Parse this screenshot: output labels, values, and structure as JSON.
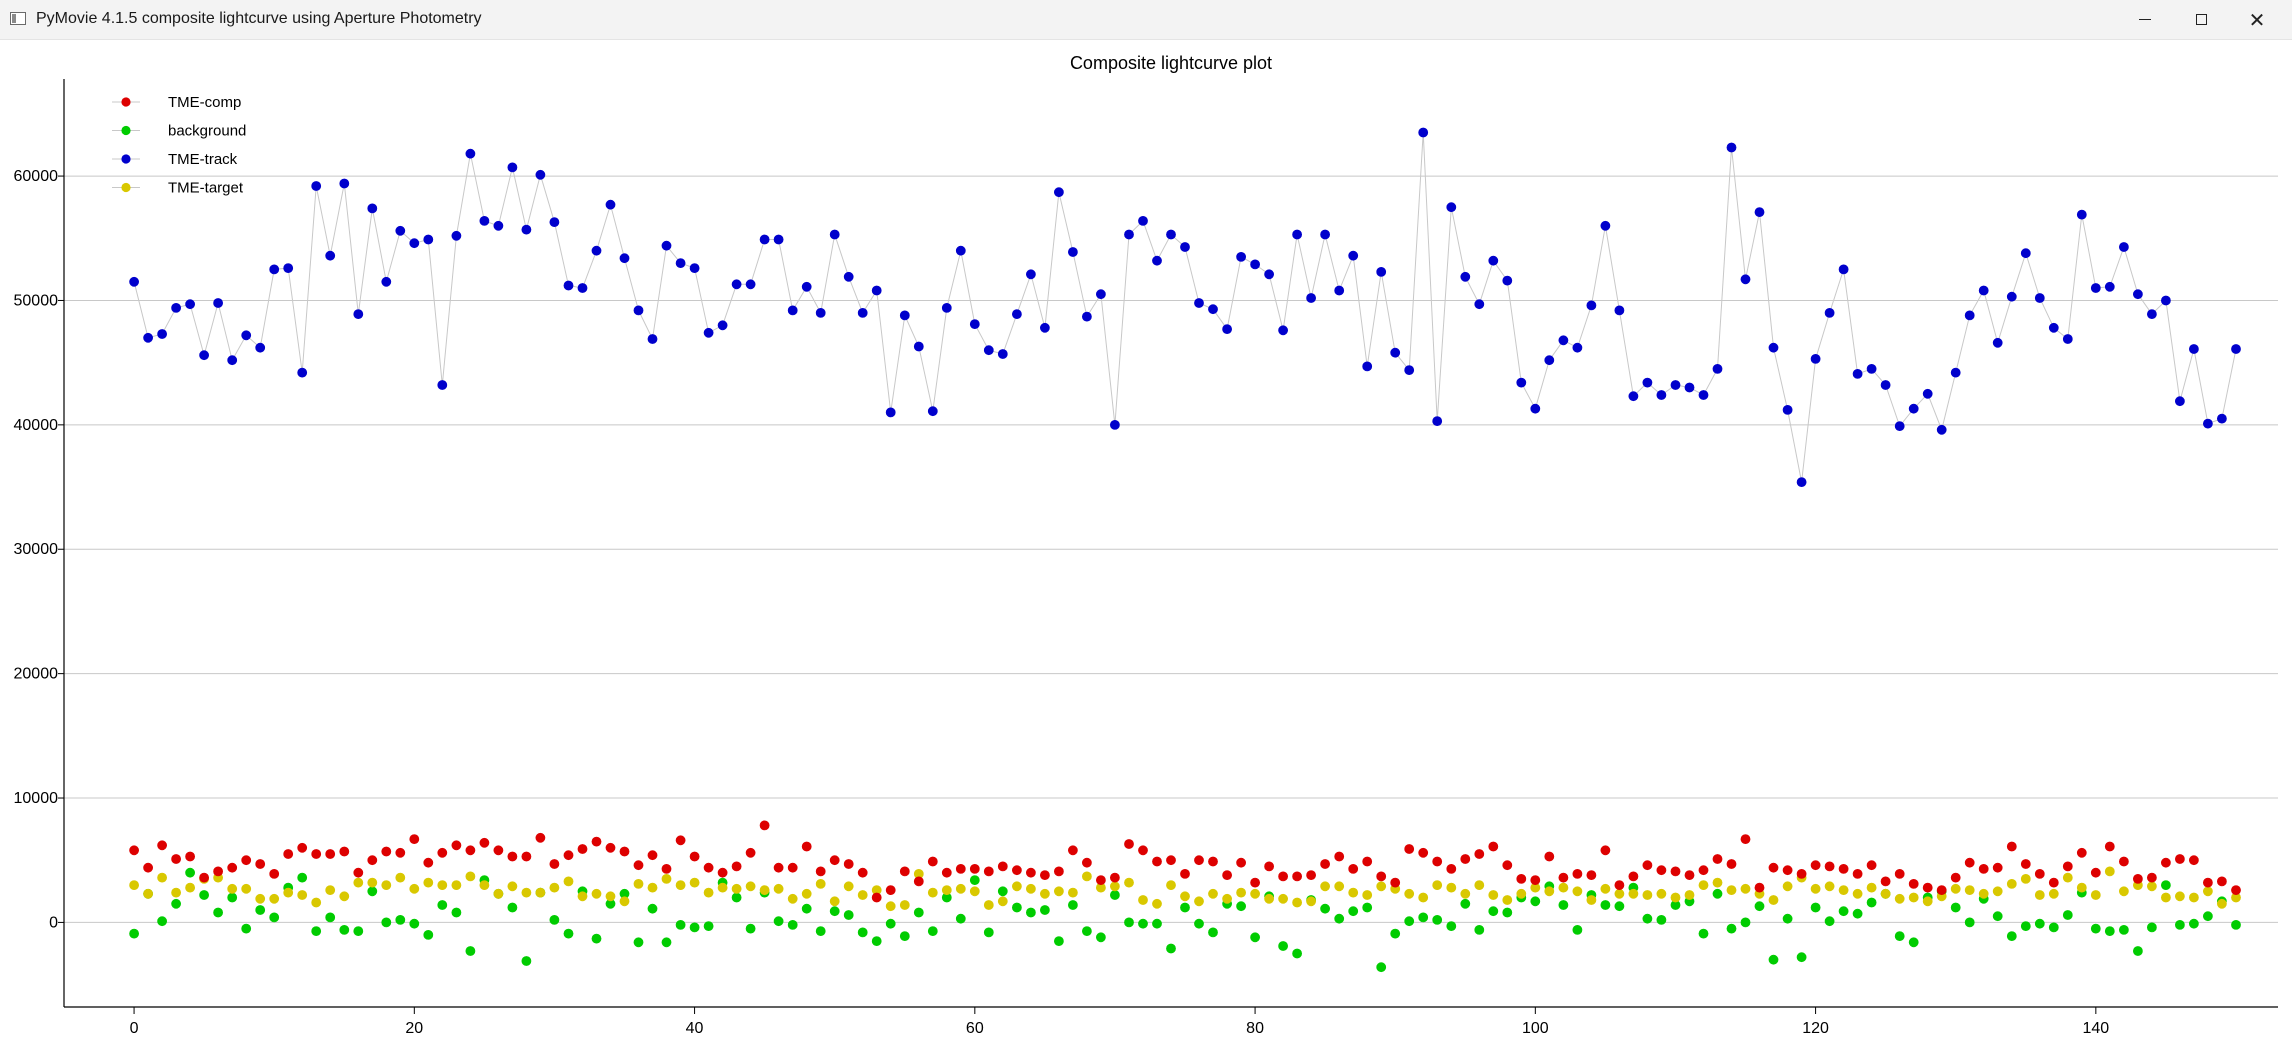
{
  "window": {
    "title": "PyMovie 4.1.5 composite lightcurve using Aperture Photometry",
    "icon": "window-app-icon",
    "controls": [
      "minimize-icon",
      "maximize-icon",
      "close-icon"
    ]
  },
  "chart_data": {
    "type": "scatter",
    "title": "Composite lightcurve plot",
    "xlabel": "",
    "ylabel": "",
    "xlim": [
      -5,
      153
    ],
    "ylim": [
      -6800,
      67000
    ],
    "x_ticks": [
      0,
      20,
      40,
      60,
      80,
      100,
      120,
      140
    ],
    "y_ticks": [
      0,
      10000,
      20000,
      30000,
      40000,
      50000,
      60000
    ],
    "grid": "horizontal",
    "legend_position": "top-left",
    "x": [
      0,
      1,
      2,
      3,
      4,
      5,
      6,
      7,
      8,
      9,
      10,
      11,
      12,
      13,
      14,
      15,
      16,
      17,
      18,
      19,
      20,
      21,
      22,
      23,
      24,
      25,
      26,
      27,
      28,
      29,
      30,
      31,
      32,
      33,
      34,
      35,
      36,
      37,
      38,
      39,
      40,
      41,
      42,
      43,
      44,
      45,
      46,
      47,
      48,
      49,
      50,
      51,
      52,
      53,
      54,
      55,
      56,
      57,
      58,
      59,
      60,
      61,
      62,
      63,
      64,
      65,
      66,
      67,
      68,
      69,
      70,
      71,
      72,
      73,
      74,
      75,
      76,
      77,
      78,
      79,
      80,
      81,
      82,
      83,
      84,
      85,
      86,
      87,
      88,
      89,
      90,
      91,
      92,
      93,
      94,
      95,
      96,
      97,
      98,
      99,
      100,
      101,
      102,
      103,
      104,
      105,
      106,
      107,
      108,
      109,
      110,
      111,
      112,
      113,
      114,
      115,
      116,
      117,
      118,
      119,
      120,
      121,
      122,
      123,
      124,
      125,
      126,
      127,
      128,
      129,
      130,
      131,
      132,
      133,
      134,
      135,
      136,
      137,
      138,
      139,
      140,
      141,
      142,
      143,
      144,
      145,
      146,
      147,
      148,
      149,
      150
    ],
    "series": [
      {
        "name": "TME-comp",
        "color": "#dd0000",
        "connected": false,
        "values": [
          5800,
          4400,
          6200,
          5100,
          5300,
          3600,
          4100,
          4400,
          5000,
          4700,
          3900,
          5500,
          6000,
          5500,
          5500,
          5700,
          4000,
          5000,
          5700,
          5600,
          6700,
          4800,
          5600,
          6200,
          5800,
          6400,
          5800,
          5300,
          5300,
          6800,
          4700,
          5400,
          5900,
          6500,
          6000,
          5700,
          4600,
          5400,
          4300,
          6600,
          5300,
          4400,
          4000,
          4500,
          5600,
          7800,
          4400,
          4400,
          6100,
          4100,
          5000,
          4700,
          4000,
          2000,
          2600,
          4100,
          3300,
          4900,
          4000,
          4300,
          4300,
          4100,
          4500,
          4200,
          4000,
          3800,
          4100,
          5800,
          4800,
          3400,
          3600,
          6300,
          5800,
          4900,
          5000,
          3900,
          5000,
          4900,
          3800,
          4800,
          3200,
          4500,
          3700,
          3700,
          3800,
          4700,
          5300,
          4300,
          4900,
          3700,
          3200,
          5900,
          5600,
          4900,
          4300,
          5100,
          5500,
          6100,
          4600,
          3500,
          3400,
          5300,
          3600,
          3900,
          3800,
          5800,
          3000,
          3700,
          4600,
          4200,
          4100,
          3800,
          4200,
          5100,
          4700,
          6700,
          2800,
          4400,
          4200,
          3900,
          4600,
          4500,
          4300,
          3900,
          4600,
          3300,
          3900,
          3100,
          2800,
          2600,
          3600,
          4800,
          4300,
          4400,
          6100,
          4700,
          3900,
          3200,
          4500,
          5600,
          4000,
          6100,
          4900,
          3500,
          3600,
          4800,
          5100,
          5000,
          3200,
          3300,
          2600
        ]
      },
      {
        "name": "background",
        "color": "#00cc00",
        "connected": false,
        "values": [
          -900,
          2300,
          100,
          1500,
          4000,
          2200,
          800,
          2000,
          -500,
          1000,
          400,
          2800,
          3600,
          -700,
          400,
          -600,
          -700,
          2500,
          0,
          200,
          -100,
          -1000,
          1400,
          800,
          -2300,
          3400,
          2300,
          1200,
          -3100,
          2400,
          200,
          -900,
          2500,
          -1300,
          1500,
          2300,
          -1600,
          1100,
          -1600,
          -200,
          -400,
          -300,
          3200,
          2000,
          -500,
          2400,
          100,
          -200,
          1100,
          -700,
          900,
          600,
          -800,
          -1500,
          -100,
          -1100,
          800,
          -700,
          2000,
          300,
          3400,
          -800,
          2500,
          1200,
          800,
          1000,
          -1500,
          1400,
          -700,
          -1200,
          2200,
          0,
          -100,
          -100,
          -2100,
          1200,
          -100,
          -800,
          1500,
          1300,
          -1200,
          2100,
          -1900,
          -2500,
          1800,
          1100,
          300,
          900,
          1200,
          -3600,
          -900,
          100,
          400,
          200,
          -300,
          1500,
          -600,
          900,
          800,
          2000,
          1700,
          2900,
          1400,
          -600,
          2200,
          1400,
          1300,
          2800,
          300,
          200,
          1400,
          1700,
          -900,
          2300,
          -500,
          0,
          1300,
          -3000,
          300,
          -2800,
          1200,
          100,
          900,
          700,
          1600,
          2300,
          -1100,
          -1600,
          2000,
          2500,
          1200,
          0,
          1900,
          500,
          -1100,
          -300,
          -100,
          -400,
          600,
          2400,
          -500,
          -700,
          -600,
          -2300,
          -400,
          3000,
          -200,
          -100,
          500,
          1700,
          -200
        ]
      },
      {
        "name": "TME-track",
        "color": "#0000cc",
        "connected": true,
        "values": [
          51500,
          47000,
          47300,
          49400,
          49700,
          45600,
          49800,
          45200,
          47200,
          46200,
          52500,
          52600,
          44200,
          59200,
          53600,
          59400,
          48900,
          57400,
          51500,
          55600,
          54600,
          54900,
          43200,
          55200,
          61800,
          56400,
          56000,
          60700,
          55700,
          60100,
          56300,
          51200,
          51000,
          54000,
          57700,
          53400,
          49200,
          46900,
          54400,
          53000,
          52600,
          47400,
          48000,
          51300,
          51300,
          54900,
          54900,
          49200,
          51100,
          49000,
          55300,
          51900,
          49000,
          50800,
          41000,
          48800,
          46300,
          41100,
          49400,
          54000,
          48100,
          46000,
          45700,
          48900,
          52100,
          47800,
          58700,
          53900,
          48700,
          50500,
          40000,
          55300,
          56400,
          53200,
          55300,
          54300,
          49800,
          49300,
          47700,
          53500,
          52900,
          52100,
          47600,
          55300,
          50200,
          55300,
          50800,
          53600,
          44700,
          52300,
          45800,
          44400,
          63500,
          40300,
          57500,
          51900,
          49700,
          53200,
          51600,
          43400,
          41300,
          45200,
          46800,
          46200,
          49600,
          56000,
          49200,
          42300,
          43400,
          42400,
          43200,
          43000,
          42400,
          44500,
          62300,
          51700,
          57100,
          46200,
          41200,
          35400,
          45300,
          49000,
          52500,
          44100,
          44500,
          43200,
          39900,
          41300,
          42500,
          39600,
          44200,
          48800,
          50800,
          46600,
          50300,
          53800,
          50200,
          47800,
          46900,
          56900,
          51000,
          51100,
          54300,
          50500,
          48900,
          50000,
          41900,
          46100,
          40100,
          40500,
          46100
        ]
      },
      {
        "name": "TME-target",
        "color": "#d9c800",
        "connected": false,
        "values": [
          3000,
          2300,
          3600,
          2400,
          2800,
          3500,
          3600,
          2700,
          2700,
          1900,
          1900,
          2400,
          2200,
          1600,
          2600,
          2100,
          3200,
          3200,
          3000,
          3600,
          2700,
          3200,
          3000,
          3000,
          3700,
          3000,
          2300,
          2900,
          2400,
          2400,
          2800,
          3300,
          2100,
          2300,
          2100,
          1700,
          3100,
          2800,
          3500,
          3000,
          3200,
          2400,
          2800,
          2700,
          2900,
          2600,
          2700,
          1900,
          2300,
          3100,
          1700,
          2900,
          2200,
          2600,
          1300,
          1400,
          3900,
          2400,
          2600,
          2700,
          2500,
          1400,
          1700,
          2900,
          2700,
          2300,
          2500,
          2400,
          3700,
          2800,
          2900,
          3200,
          1800,
          1500,
          3000,
          2100,
          1700,
          2300,
          1900,
          2400,
          2300,
          1900,
          1900,
          1600,
          1700,
          2900,
          2900,
          2400,
          2200,
          2900,
          2700,
          2300,
          2000,
          3000,
          2800,
          2300,
          3000,
          2200,
          1800,
          2300,
          2800,
          2500,
          2800,
          2500,
          1800,
          2700,
          2300,
          2300,
          2200,
          2300,
          2000,
          2200,
          3000,
          3200,
          2600,
          2700,
          2300,
          1800,
          2900,
          3600,
          2700,
          2900,
          2600,
          2300,
          2800,
          2300,
          1900,
          2000,
          1700,
          2100,
          2700,
          2600,
          2300,
          2500,
          3100,
          3500,
          2200,
          2300,
          3600,
          2800,
          2200,
          4100,
          2500,
          3000,
          2900,
          2000,
          2100,
          2000,
          2500,
          1500,
          2000
        ]
      }
    ]
  }
}
